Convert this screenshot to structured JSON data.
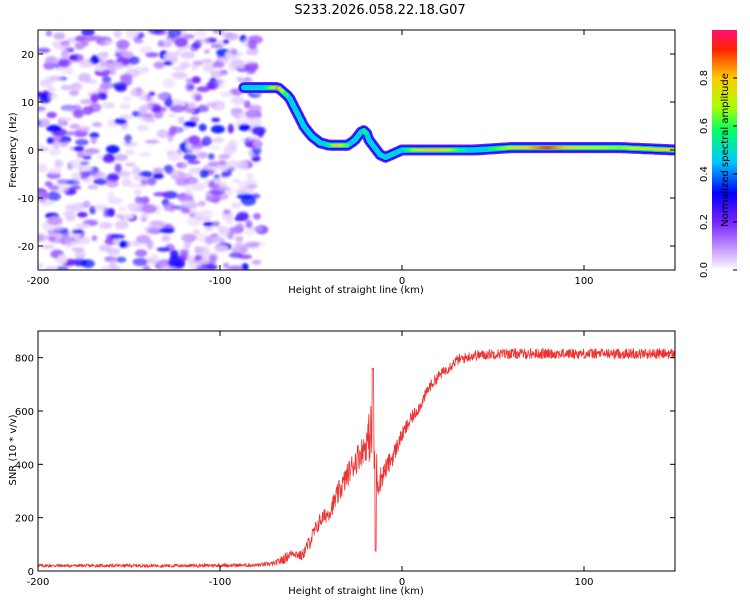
{
  "title": "S233.2026.058.22.18.G07",
  "chart_data": [
    {
      "type": "heatmap",
      "panel": "spectrogram",
      "xlabel": "Height of straight line (km)",
      "ylabel": "Frequency (Hz)",
      "xlim": [
        -200,
        150
      ],
      "ylim": [
        -25,
        25
      ],
      "x_ticks": [
        -200,
        -100,
        0,
        100
      ],
      "y_ticks": [
        -20,
        -10,
        0,
        10,
        20
      ],
      "noise_region_x": [
        -200,
        -77
      ],
      "ridge": {
        "x": [
          -87,
          -80,
          -73,
          -68,
          -62,
          -58,
          -54,
          -50,
          -45,
          -40,
          -35,
          -30,
          -26,
          -22,
          -20,
          -18,
          -15,
          -12,
          -9,
          -6,
          -3,
          0,
          10,
          20,
          40,
          60,
          80,
          100,
          120,
          150
        ],
        "freq": [
          13,
          13,
          13,
          13,
          11,
          8,
          5,
          3,
          1.5,
          1,
          1,
          1,
          2,
          4,
          4,
          2,
          0.5,
          -1,
          -1.5,
          -1,
          -0.5,
          0,
          0,
          0,
          0,
          0.5,
          0.5,
          0.5,
          0.5,
          0
        ],
        "amplitude": [
          0.25,
          0.35,
          0.6,
          0.85,
          0.5,
          0.45,
          0.4,
          0.4,
          0.45,
          0.55,
          0.8,
          0.6,
          0.3,
          0.4,
          0.6,
          0.45,
          0.35,
          0.3,
          0.4,
          0.35,
          0.45,
          0.5,
          0.75,
          0.8,
          0.45,
          0.7,
          0.9,
          0.7,
          0.65,
          0.8
        ]
      },
      "colorbar": {
        "label": "Normalized spectral amplitude",
        "range": [
          0,
          1
        ],
        "ticks": [
          0.0,
          0.2,
          0.4,
          0.6,
          0.8
        ],
        "tick_labels": [
          "0.0",
          "0.2",
          "0.4",
          "0.6",
          "0.8"
        ],
        "colors": [
          "#ffffff",
          "#d8b8ff",
          "#7722ff",
          "#0000ff",
          "#00c8ff",
          "#00ff66",
          "#aaff00",
          "#ffcc00",
          "#ff2200",
          "#ff1177"
        ]
      }
    },
    {
      "type": "line",
      "panel": "snr",
      "xlabel": "Height of straight line (km)",
      "ylabel": "SNR (10 * v/v)",
      "xlim": [
        -200,
        150
      ],
      "ylim": [
        0,
        900
      ],
      "x_ticks": [
        -200,
        -100,
        0,
        100
      ],
      "y_ticks": [
        0,
        200,
        400,
        600,
        800
      ],
      "color": "#ee3333",
      "series": [
        {
          "name": "SNR",
          "x": [
            -200,
            -120,
            -80,
            -70,
            -65,
            -60,
            -55,
            -50,
            -45,
            -40,
            -35,
            -30,
            -25,
            -20,
            -17,
            -15,
            -13,
            -10,
            -5,
            0,
            5,
            10,
            15,
            20,
            25,
            30,
            35,
            40,
            45,
            50,
            60,
            80,
            100,
            120,
            150
          ],
          "values": [
            20,
            20,
            22,
            28,
            45,
            70,
            55,
            120,
            190,
            220,
            290,
            360,
            420,
            470,
            520,
            420,
            330,
            370,
            430,
            510,
            570,
            620,
            690,
            730,
            760,
            790,
            800,
            810,
            810,
            815,
            815,
            815,
            815,
            815,
            815
          ],
          "spread": [
            12,
            12,
            14,
            16,
            40,
            30,
            40,
            60,
            60,
            60,
            90,
            90,
            110,
            110,
            240,
            250,
            110,
            80,
            70,
            55,
            55,
            45,
            45,
            40,
            40,
            40,
            40,
            40,
            40,
            40,
            40,
            40,
            40,
            40,
            40
          ]
        }
      ]
    }
  ]
}
